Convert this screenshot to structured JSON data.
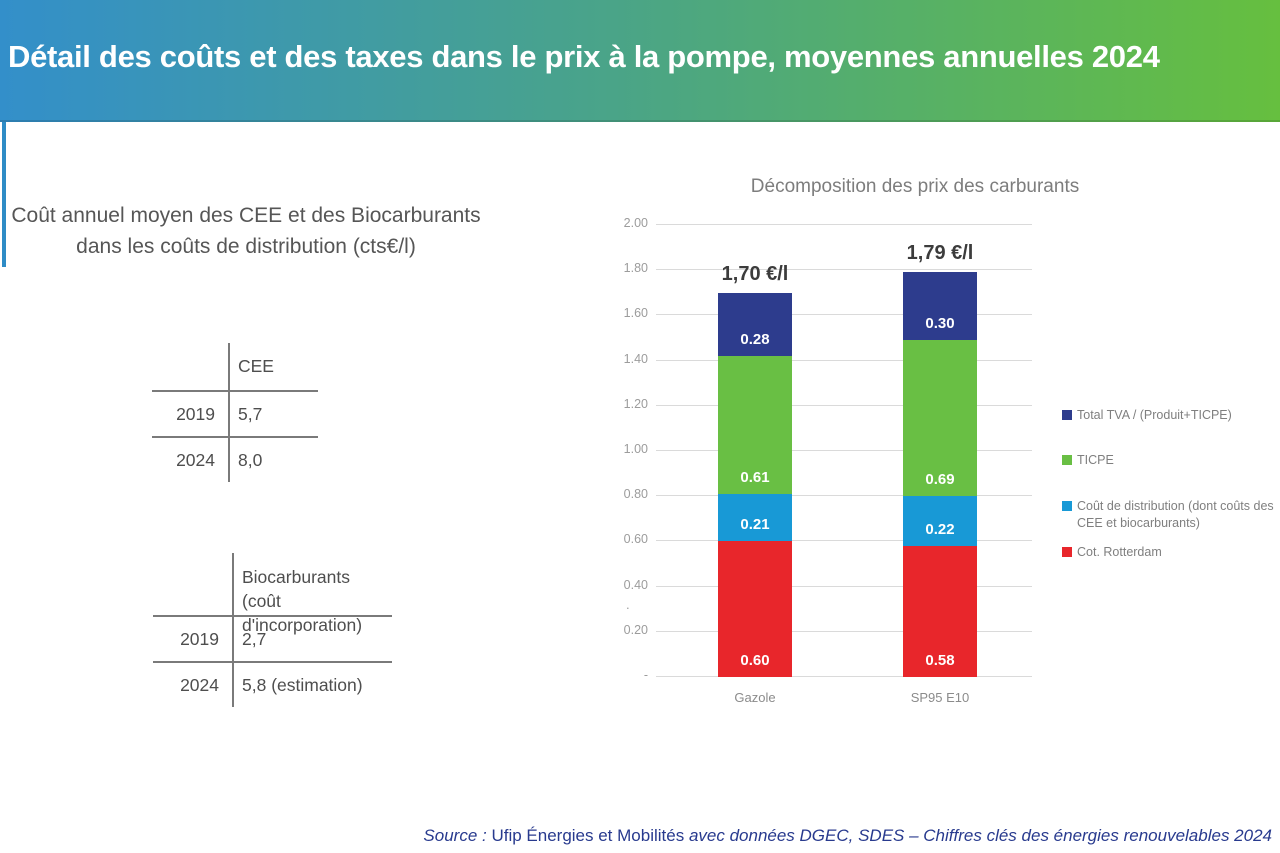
{
  "header": {
    "title": "Détail des coûts et des taxes dans le prix à la pompe, moyennes annuelles 2024",
    "gradient_left": "#338fca",
    "gradient_mid": "#4ba585",
    "gradient_right": "#66bf3f",
    "accent_color": "#2e8cc6"
  },
  "left_panel": {
    "heading_line1": "Coût annuel moyen des CEE et des Biocarburants",
    "heading_line2": "dans les coûts de distribution (cts€/l)",
    "cee_table": {
      "header": "CEE",
      "rows": [
        [
          "2019",
          "5,7"
        ],
        [
          "2024",
          "8,0"
        ]
      ]
    },
    "bio_table": {
      "header_line1": "Biocarburants",
      "header_line2": "(coût d'incorporation)",
      "rows": [
        [
          "2019",
          "2,7"
        ],
        [
          "2024",
          "5,8 (estimation)"
        ]
      ]
    }
  },
  "chart_data": {
    "type": "bar",
    "stacked": true,
    "title": "Décomposition des prix des carburants",
    "categories": [
      "Gazole",
      "SP95 E10"
    ],
    "totals_label": [
      "1,70 €/l",
      "1,79 €/l"
    ],
    "totals": [
      1.7,
      1.79
    ],
    "series": [
      {
        "name": "Cot. Rotterdam",
        "color": "#e8262b",
        "values": [
          0.6,
          0.58
        ]
      },
      {
        "name": "Coût de distribution (dont coûts des CEE et biocarburants)",
        "color": "#1899d6",
        "values": [
          0.21,
          0.22
        ]
      },
      {
        "name": "TICPE",
        "color": "#69bf44",
        "values": [
          0.61,
          0.69
        ]
      },
      {
        "name": "Total TVA / (Produit+TICPE)",
        "color": "#2d3c8d",
        "values": [
          0.28,
          0.3
        ]
      }
    ],
    "legend": [
      {
        "color": "#2d3c8d",
        "label": "Total TVA / (Produit+TICPE)"
      },
      {
        "color": "#69bf44",
        "label": "TICPE"
      },
      {
        "color": "#1899d6",
        "label": "Coût de distribution (dont coûts des CEE et biocarburants)"
      },
      {
        "color": "#e8262b",
        "label": "Cot. Rotterdam"
      }
    ],
    "ylim": [
      0,
      2.0
    ],
    "yticks": [
      "2.00",
      "1.80",
      "1.60",
      "1.40",
      "1.20",
      "1.00",
      "0.80",
      "0.60",
      "0.40",
      "0.20",
      "-"
    ],
    "stray_axis_dot": ".",
    "grid": true,
    "legend_position": "right"
  },
  "source": {
    "prefix": "Source : ",
    "org": "Ufip Énergies et Mobilités",
    "rest": " avec données DGEC, SDES – Chiffres clés des énergies renouvelables 2024"
  }
}
